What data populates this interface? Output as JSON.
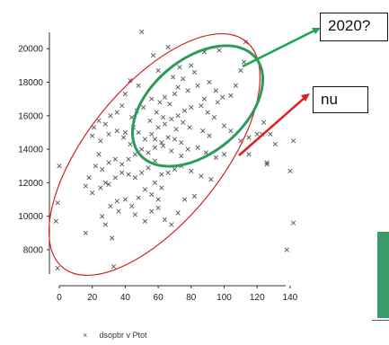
{
  "chart_data": {
    "type": "scatter",
    "title": "",
    "xlabel": "",
    "ylabel": "",
    "xlim": [
      -8,
      150
    ],
    "ylim": [
      6400,
      21500
    ],
    "x_ticks": [
      0,
      20,
      40,
      60,
      80,
      100,
      120,
      140
    ],
    "y_ticks": [
      8000,
      10000,
      12000,
      14000,
      16000,
      18000,
      20000
    ],
    "legend": {
      "marker": "×",
      "label": "dsopbr v Ptot",
      "placement": "bottom"
    },
    "series": [
      {
        "name": "dsopbr v Ptot",
        "marker": "x",
        "color": "#555555",
        "points": [
          [
            50,
            21000
          ],
          [
            66,
            20100
          ],
          [
            88,
            19800
          ],
          [
            97,
            19900
          ],
          [
            113,
            20400
          ],
          [
            112,
            19200
          ],
          [
            110,
            18700
          ],
          [
            80,
            19000
          ],
          [
            82,
            18600
          ],
          [
            75,
            18200
          ],
          [
            84,
            17800
          ],
          [
            91,
            18000
          ],
          [
            95,
            17500
          ],
          [
            99,
            17100
          ],
          [
            96,
            16800
          ],
          [
            107,
            17800
          ],
          [
            104,
            17200
          ],
          [
            70,
            17300
          ],
          [
            72,
            17700
          ],
          [
            64,
            17100
          ],
          [
            61,
            16800
          ],
          [
            56,
            17000
          ],
          [
            51,
            16500
          ],
          [
            48,
            17800
          ],
          [
            43,
            18100
          ],
          [
            40,
            17300
          ],
          [
            38,
            16600
          ],
          [
            35,
            16200
          ],
          [
            31,
            16000
          ],
          [
            28,
            15500
          ],
          [
            24,
            15700
          ],
          [
            21,
            15300
          ],
          [
            20,
            14800
          ],
          [
            25,
            14500
          ],
          [
            30,
            14900
          ],
          [
            35,
            15100
          ],
          [
            40,
            15000
          ],
          [
            45,
            15300
          ],
          [
            48,
            15000
          ],
          [
            52,
            14600
          ],
          [
            56,
            14900
          ],
          [
            60,
            15300
          ],
          [
            64,
            15500
          ],
          [
            68,
            15800
          ],
          [
            72,
            16000
          ],
          [
            76,
            16300
          ],
          [
            80,
            16500
          ],
          [
            86,
            16600
          ],
          [
            90,
            16200
          ],
          [
            94,
            15900
          ],
          [
            100,
            15400
          ],
          [
            104,
            15100
          ],
          [
            110,
            14500
          ],
          [
            115,
            14700
          ],
          [
            120,
            14900
          ],
          [
            124,
            15600
          ],
          [
            128,
            14900
          ],
          [
            131,
            14300
          ],
          [
            142,
            14500
          ],
          [
            140,
            12700
          ],
          [
            126,
            13100
          ],
          [
            123,
            14900
          ],
          [
            115,
            13700
          ],
          [
            100,
            13700
          ],
          [
            95,
            13500
          ],
          [
            89,
            13800
          ],
          [
            84,
            14100
          ],
          [
            78,
            14000
          ],
          [
            74,
            13600
          ],
          [
            68,
            13900
          ],
          [
            63,
            14200
          ],
          [
            58,
            14100
          ],
          [
            54,
            13800
          ],
          [
            50,
            14000
          ],
          [
            46,
            13700
          ],
          [
            42,
            13400
          ],
          [
            38,
            13100
          ],
          [
            34,
            13400
          ],
          [
            30,
            13200
          ],
          [
            26,
            12800
          ],
          [
            22,
            13000
          ],
          [
            18,
            12300
          ],
          [
            16,
            11800
          ],
          [
            20,
            11400
          ],
          [
            25,
            11700
          ],
          [
            30,
            11900
          ],
          [
            34,
            12300
          ],
          [
            38,
            12600
          ],
          [
            42,
            12500
          ],
          [
            46,
            12300
          ],
          [
            50,
            12600
          ],
          [
            54,
            12900
          ],
          [
            58,
            13300
          ],
          [
            62,
            12500
          ],
          [
            66,
            12600
          ],
          [
            70,
            12800
          ],
          [
            74,
            13000
          ],
          [
            80,
            12700
          ],
          [
            86,
            12400
          ],
          [
            92,
            12200
          ],
          [
            35,
            10900
          ],
          [
            40,
            11000
          ],
          [
            44,
            10600
          ],
          [
            48,
            11100
          ],
          [
            52,
            11600
          ],
          [
            56,
            11300
          ],
          [
            60,
            11000
          ],
          [
            46,
            10100
          ],
          [
            52,
            9700
          ],
          [
            56,
            10300
          ],
          [
            60,
            10500
          ],
          [
            64,
            9800
          ],
          [
            68,
            9500
          ],
          [
            72,
            10200
          ],
          [
            76,
            11000
          ],
          [
            82,
            11200
          ],
          [
            36,
            10300
          ],
          [
            31,
            10600
          ],
          [
            26,
            10000
          ],
          [
            32,
            8700
          ],
          [
            28,
            9500
          ],
          [
            16,
            9000
          ],
          [
            0,
            13000
          ],
          [
            -1,
            10800
          ],
          [
            -2,
            9700
          ],
          [
            -1,
            6900
          ],
          [
            33,
            7000
          ],
          [
            138,
            8000
          ],
          [
            142,
            9600
          ],
          [
            126,
            13200
          ],
          [
            55,
            15700
          ],
          [
            59,
            16200
          ],
          [
            63,
            15900
          ],
          [
            67,
            16700
          ],
          [
            71,
            15200
          ],
          [
            75,
            15600
          ],
          [
            79,
            15300
          ],
          [
            58,
            14600
          ],
          [
            62,
            14400
          ],
          [
            66,
            14700
          ],
          [
            87,
            15100
          ],
          [
            91,
            14800
          ],
          [
            44,
            15900
          ],
          [
            47,
            16300
          ],
          [
            69,
            18300
          ],
          [
            73,
            18900
          ],
          [
            78,
            17500
          ],
          [
            60,
            18700
          ],
          [
            57,
            19600
          ],
          [
            88,
            17000
          ],
          [
            43,
            14300
          ],
          [
            39,
            14700
          ],
          [
            28,
            12000
          ],
          [
            24,
            13700
          ],
          [
            70,
            14600
          ],
          [
            74,
            14400
          ],
          [
            58,
            12000
          ],
          [
            62,
            11700
          ]
        ]
      }
    ],
    "annotations": [
      {
        "type": "ellipse",
        "color": "#d42020",
        "text": ""
      },
      {
        "type": "ellipse",
        "color": "#2e9a5a",
        "text": ""
      },
      {
        "type": "arrow",
        "color": "#18a650",
        "text": "2020?"
      },
      {
        "type": "arrow",
        "color": "#e02020",
        "text": "nu"
      }
    ]
  },
  "annotations": {
    "box_2020": "2020?",
    "box_nu": "nu"
  },
  "colors": {
    "green_bar": "#3a9a6a"
  }
}
